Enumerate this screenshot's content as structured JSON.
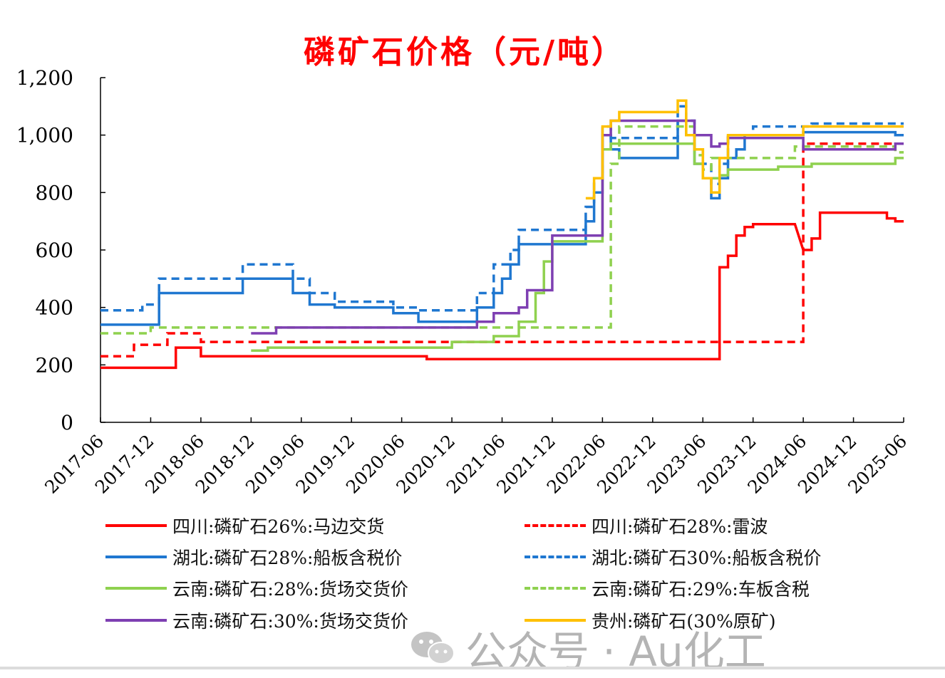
{
  "chart_data": {
    "type": "line",
    "title": "磷矿石价格（元/吨）",
    "x_tick_labels": [
      "2017-06",
      "2017-12",
      "2018-06",
      "2018-12",
      "2019-06",
      "2019-12",
      "2020-06",
      "2020-12",
      "2021-06",
      "2021-12",
      "2022-06",
      "2022-12",
      "2023-06",
      "2023-12",
      "2024-06",
      "2024-12",
      "2025-06"
    ],
    "y_tick_labels": [
      "0",
      "200",
      "400",
      "600",
      "800",
      "1,000",
      "1,200"
    ],
    "xlim": [
      "2017-06",
      "2025-06"
    ],
    "ylim": [
      0,
      1200
    ],
    "grid": false,
    "legend_position": "bottom",
    "series": [
      {
        "name": "四川:磷矿石26%:马边交货",
        "color": "#ff0000",
        "dash": "solid",
        "points": [
          [
            "2017-06",
            190
          ],
          [
            "2018-03",
            190
          ],
          [
            "2018-03",
            260
          ],
          [
            "2018-06",
            260
          ],
          [
            "2018-06",
            230
          ],
          [
            "2020-09",
            230
          ],
          [
            "2020-09",
            220
          ],
          [
            "2023-08",
            220
          ],
          [
            "2023-08",
            540
          ],
          [
            "2023-09",
            540
          ],
          [
            "2023-09",
            580
          ],
          [
            "2023-10",
            580
          ],
          [
            "2023-10",
            650
          ],
          [
            "2023-11",
            650
          ],
          [
            "2023-11",
            680
          ],
          [
            "2023-12",
            680
          ],
          [
            "2023-12",
            690
          ],
          [
            "2024-05",
            690
          ],
          [
            "2024-06",
            600
          ],
          [
            "2024-07",
            600
          ],
          [
            "2024-07",
            640
          ],
          [
            "2024-08",
            640
          ],
          [
            "2024-08",
            730
          ],
          [
            "2025-04",
            730
          ],
          [
            "2025-04",
            710
          ],
          [
            "2025-05",
            710
          ],
          [
            "2025-05",
            700
          ],
          [
            "2025-06",
            700
          ]
        ]
      },
      {
        "name": "四川:磷矿石28%:雷波",
        "color": "#ff0000",
        "dash": "dashed",
        "points": [
          [
            "2017-06",
            230
          ],
          [
            "2017-10",
            230
          ],
          [
            "2017-10",
            270
          ],
          [
            "2018-02",
            270
          ],
          [
            "2018-02",
            310
          ],
          [
            "2018-06",
            310
          ],
          [
            "2018-06",
            280
          ],
          [
            "2024-06",
            280
          ],
          [
            "2024-06",
            970
          ],
          [
            "2025-06",
            970
          ]
        ]
      },
      {
        "name": "湖北:磷矿石28%:船板含税价",
        "color": "#1f77d0",
        "dash": "solid",
        "points": [
          [
            "2017-06",
            340
          ],
          [
            "2018-01",
            340
          ],
          [
            "2018-01",
            450
          ],
          [
            "2018-11",
            450
          ],
          [
            "2018-11",
            500
          ],
          [
            "2019-05",
            500
          ],
          [
            "2019-05",
            450
          ],
          [
            "2019-07",
            450
          ],
          [
            "2019-07",
            410
          ],
          [
            "2019-10",
            410
          ],
          [
            "2019-10",
            400
          ],
          [
            "2020-05",
            400
          ],
          [
            "2020-05",
            380
          ],
          [
            "2020-08",
            380
          ],
          [
            "2020-08",
            350
          ],
          [
            "2021-03",
            350
          ],
          [
            "2021-03",
            400
          ],
          [
            "2021-05",
            400
          ],
          [
            "2021-05",
            450
          ],
          [
            "2021-06",
            450
          ],
          [
            "2021-06",
            500
          ],
          [
            "2021-07",
            500
          ],
          [
            "2021-07",
            550
          ],
          [
            "2021-08",
            550
          ],
          [
            "2021-08",
            620
          ],
          [
            "2022-04",
            620
          ],
          [
            "2022-04",
            700
          ],
          [
            "2022-05",
            700
          ],
          [
            "2022-05",
            800
          ],
          [
            "2022-06",
            800
          ],
          [
            "2022-06",
            1000
          ],
          [
            "2022-07",
            1000
          ],
          [
            "2022-07",
            950
          ],
          [
            "2022-08",
            950
          ],
          [
            "2022-08",
            920
          ],
          [
            "2023-03",
            920
          ],
          [
            "2023-03",
            1050
          ],
          [
            "2023-04",
            1050
          ],
          [
            "2023-04",
            1000
          ],
          [
            "2023-05",
            1000
          ],
          [
            "2023-05",
            900
          ],
          [
            "2023-06",
            900
          ],
          [
            "2023-06",
            850
          ],
          [
            "2023-07",
            850
          ],
          [
            "2023-07",
            780
          ],
          [
            "2023-08",
            780
          ],
          [
            "2023-08",
            850
          ],
          [
            "2023-09",
            850
          ],
          [
            "2023-09",
            920
          ],
          [
            "2023-10",
            920
          ],
          [
            "2023-10",
            950
          ],
          [
            "2023-11",
            950
          ],
          [
            "2023-11",
            1000
          ],
          [
            "2024-06",
            1000
          ],
          [
            "2024-06",
            1010
          ],
          [
            "2025-05",
            1010
          ],
          [
            "2025-05",
            1000
          ],
          [
            "2025-06",
            1000
          ]
        ]
      },
      {
        "name": "湖北:磷矿石30%:船板含税价",
        "color": "#1f77d0",
        "dash": "dashed",
        "points": [
          [
            "2017-06",
            390
          ],
          [
            "2017-11",
            390
          ],
          [
            "2017-11",
            410
          ],
          [
            "2018-01",
            410
          ],
          [
            "2018-01",
            500
          ],
          [
            "2018-11",
            500
          ],
          [
            "2018-11",
            550
          ],
          [
            "2019-05",
            550
          ],
          [
            "2019-05",
            500
          ],
          [
            "2019-07",
            500
          ],
          [
            "2019-07",
            450
          ],
          [
            "2019-10",
            450
          ],
          [
            "2019-10",
            420
          ],
          [
            "2020-05",
            420
          ],
          [
            "2020-05",
            400
          ],
          [
            "2020-08",
            400
          ],
          [
            "2020-08",
            390
          ],
          [
            "2021-03",
            390
          ],
          [
            "2021-03",
            450
          ],
          [
            "2021-05",
            450
          ],
          [
            "2021-05",
            550
          ],
          [
            "2021-07",
            550
          ],
          [
            "2021-07",
            600
          ],
          [
            "2021-08",
            600
          ],
          [
            "2021-08",
            670
          ],
          [
            "2022-04",
            670
          ],
          [
            "2022-04",
            750
          ],
          [
            "2022-05",
            750
          ],
          [
            "2022-05",
            850
          ],
          [
            "2022-06",
            850
          ],
          [
            "2022-06",
            1030
          ],
          [
            "2022-07",
            1030
          ],
          [
            "2022-07",
            990
          ],
          [
            "2023-03",
            990
          ],
          [
            "2023-03",
            1100
          ],
          [
            "2023-04",
            1100
          ],
          [
            "2023-04",
            1050
          ],
          [
            "2023-05",
            1050
          ],
          [
            "2023-05",
            950
          ],
          [
            "2023-06",
            950
          ],
          [
            "2023-06",
            900
          ],
          [
            "2023-07",
            900
          ],
          [
            "2023-07",
            830
          ],
          [
            "2023-08",
            830
          ],
          [
            "2023-08",
            900
          ],
          [
            "2023-09",
            900
          ],
          [
            "2023-09",
            1000
          ],
          [
            "2023-12",
            1000
          ],
          [
            "2023-12",
            1030
          ],
          [
            "2024-07",
            1030
          ],
          [
            "2024-07",
            1040
          ],
          [
            "2025-06",
            1040
          ]
        ]
      },
      {
        "name": "云南:磷矿石:28%:货场交货价",
        "color": "#8fd14f",
        "dash": "solid",
        "points": [
          [
            "2018-12",
            250
          ],
          [
            "2019-02",
            250
          ],
          [
            "2019-02",
            260
          ],
          [
            "2020-12",
            260
          ],
          [
            "2020-12",
            280
          ],
          [
            "2021-05",
            280
          ],
          [
            "2021-05",
            300
          ],
          [
            "2021-08",
            300
          ],
          [
            "2021-08",
            350
          ],
          [
            "2021-10",
            350
          ],
          [
            "2021-10",
            450
          ],
          [
            "2021-11",
            450
          ],
          [
            "2021-11",
            560
          ],
          [
            "2021-12",
            560
          ],
          [
            "2021-12",
            630
          ],
          [
            "2022-06",
            630
          ],
          [
            "2022-06",
            950
          ],
          [
            "2022-07",
            950
          ],
          [
            "2022-07",
            970
          ],
          [
            "2023-05",
            970
          ],
          [
            "2023-05",
            900
          ],
          [
            "2023-06",
            900
          ],
          [
            "2023-06",
            850
          ],
          [
            "2023-08",
            850
          ],
          [
            "2023-08",
            860
          ],
          [
            "2023-09",
            860
          ],
          [
            "2023-09",
            880
          ],
          [
            "2024-03",
            880
          ],
          [
            "2024-03",
            890
          ],
          [
            "2024-07",
            890
          ],
          [
            "2024-07",
            900
          ],
          [
            "2025-05",
            900
          ],
          [
            "2025-05",
            920
          ],
          [
            "2025-06",
            920
          ]
        ]
      },
      {
        "name": "云南:磷矿石:29%:车板含税",
        "color": "#8fd14f",
        "dash": "dashed",
        "points": [
          [
            "2017-06",
            310
          ],
          [
            "2017-12",
            310
          ],
          [
            "2017-12",
            330
          ],
          [
            "2022-07",
            330
          ],
          [
            "2022-07",
            900
          ],
          [
            "2022-08",
            900
          ],
          [
            "2022-08",
            1030
          ],
          [
            "2023-05",
            1030
          ],
          [
            "2023-05",
            930
          ],
          [
            "2023-06",
            930
          ],
          [
            "2023-06",
            880
          ],
          [
            "2023-07",
            880
          ],
          [
            "2023-07",
            920
          ],
          [
            "2023-09",
            920
          ],
          [
            "2023-09",
            920
          ],
          [
            "2024-05",
            920
          ],
          [
            "2024-05",
            960
          ],
          [
            "2025-05",
            960
          ],
          [
            "2025-05",
            940
          ],
          [
            "2025-06",
            940
          ]
        ]
      },
      {
        "name": "云南:磷矿石:30%:货场交货价",
        "color": "#7e3fb2",
        "dash": "solid",
        "points": [
          [
            "2018-12",
            310
          ],
          [
            "2019-03",
            310
          ],
          [
            "2019-03",
            330
          ],
          [
            "2021-03",
            330
          ],
          [
            "2021-03",
            350
          ],
          [
            "2021-05",
            350
          ],
          [
            "2021-05",
            380
          ],
          [
            "2021-08",
            380
          ],
          [
            "2021-08",
            400
          ],
          [
            "2021-09",
            400
          ],
          [
            "2021-09",
            460
          ],
          [
            "2021-12",
            460
          ],
          [
            "2021-12",
            650
          ],
          [
            "2022-06",
            650
          ],
          [
            "2022-06",
            1000
          ],
          [
            "2022-07",
            1000
          ],
          [
            "2022-07",
            1050
          ],
          [
            "2023-05",
            1050
          ],
          [
            "2023-05",
            1000
          ],
          [
            "2023-07",
            1000
          ],
          [
            "2023-07",
            960
          ],
          [
            "2023-08",
            960
          ],
          [
            "2023-08",
            970
          ],
          [
            "2023-09",
            970
          ],
          [
            "2023-09",
            990
          ],
          [
            "2024-06",
            990
          ],
          [
            "2024-06",
            950
          ],
          [
            "2025-05",
            950
          ],
          [
            "2025-05",
            970
          ],
          [
            "2025-06",
            970
          ]
        ]
      },
      {
        "name": "贵州:磷矿石(30%原矿)",
        "color": "#ffc000",
        "dash": "solid",
        "points": [
          [
            "2022-04",
            780
          ],
          [
            "2022-05",
            780
          ],
          [
            "2022-05",
            850
          ],
          [
            "2022-06",
            850
          ],
          [
            "2022-06",
            1030
          ],
          [
            "2022-07",
            1030
          ],
          [
            "2022-07",
            1050
          ],
          [
            "2022-08",
            1050
          ],
          [
            "2022-08",
            1080
          ],
          [
            "2023-03",
            1080
          ],
          [
            "2023-03",
            1120
          ],
          [
            "2023-04",
            1120
          ],
          [
            "2023-04",
            1000
          ],
          [
            "2023-05",
            1000
          ],
          [
            "2023-05",
            950
          ],
          [
            "2023-06",
            950
          ],
          [
            "2023-06",
            850
          ],
          [
            "2023-07",
            850
          ],
          [
            "2023-07",
            800
          ],
          [
            "2023-08",
            800
          ],
          [
            "2023-08",
            920
          ],
          [
            "2023-09",
            920
          ],
          [
            "2023-09",
            1000
          ],
          [
            "2024-06",
            1000
          ],
          [
            "2024-06",
            1030
          ],
          [
            "2025-06",
            1030
          ]
        ]
      }
    ]
  },
  "watermark": {
    "text": "公众号 · Au化工"
  }
}
